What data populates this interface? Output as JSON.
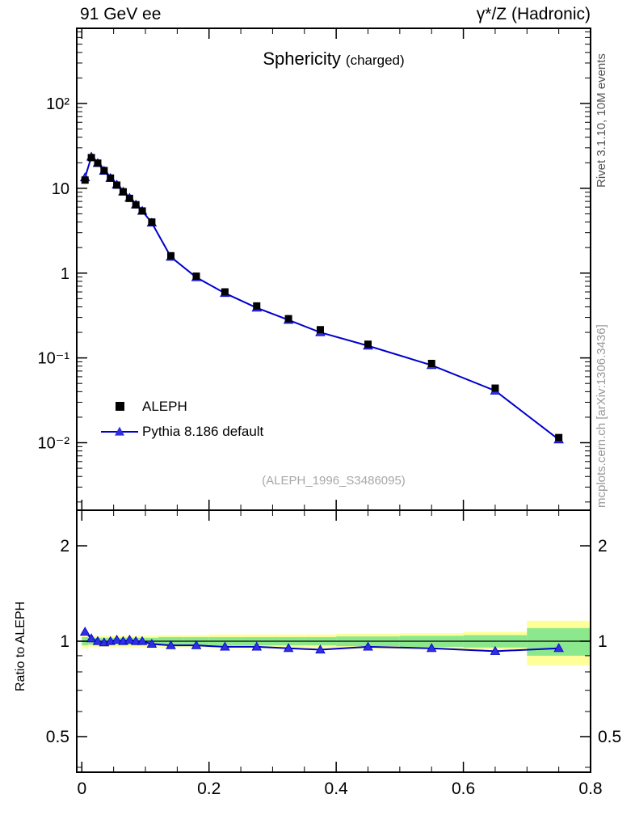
{
  "header": {
    "left": "91 GeV ee",
    "right": "γ*/Z (Hadronic)"
  },
  "title": {
    "main": "Sphericity",
    "sub": "(charged)"
  },
  "legend": [
    {
      "label": "ALEPH",
      "marker": "black-square"
    },
    {
      "label": "Pythia 8.186 default",
      "marker": "blue-triangle-line"
    }
  ],
  "watermark": "(ALEPH_1996_S3486095)",
  "side_notes": {
    "top_right": "Rivet 3.1.10,  10M events",
    "bottom_right": "mcplots.cern.ch [arXiv:1306.3436]"
  },
  "ratio_axis_label": "Ratio to ALEPH",
  "colors": {
    "mc_blue": "#0000cc",
    "mc_marker": "#3030e0",
    "data_black": "#000000",
    "band_yellow": "#ffff99",
    "band_green": "#8ce88c",
    "watermark_gray": "#a8a8a8"
  },
  "chart_data": {
    "type": "line",
    "title": "Sphericity (charged)",
    "legend_position": "left-middle",
    "grid": false,
    "x": [
      0.005,
      0.015,
      0.025,
      0.035,
      0.045,
      0.055,
      0.065,
      0.075,
      0.085,
      0.095,
      0.11,
      0.14,
      0.18,
      0.225,
      0.275,
      0.325,
      0.375,
      0.45,
      0.55,
      0.65,
      0.75
    ],
    "bin_edges": [
      0,
      0.01,
      0.02,
      0.03,
      0.04,
      0.05,
      0.06,
      0.07,
      0.08,
      0.09,
      0.1,
      0.12,
      0.16,
      0.2,
      0.25,
      0.3,
      0.35,
      0.4,
      0.5,
      0.6,
      0.7,
      0.8
    ],
    "series": [
      {
        "name": "ALEPH",
        "role": "data",
        "marker": "square",
        "color": "#000000",
        "values": [
          12.5,
          23.0,
          19.8,
          16.2,
          13.2,
          10.9,
          9.1,
          7.6,
          6.4,
          5.4,
          4.0,
          1.6,
          0.92,
          0.6,
          0.41,
          0.29,
          0.215,
          0.145,
          0.086,
          0.044,
          0.0115
        ]
      },
      {
        "name": "Pythia 8.186 default",
        "role": "mc",
        "marker": "triangle",
        "color": "#0000cc",
        "values": [
          13.4,
          23.5,
          19.8,
          16.0,
          13.2,
          11.0,
          9.1,
          7.7,
          6.4,
          5.4,
          3.92,
          1.55,
          0.89,
          0.58,
          0.39,
          0.28,
          0.2,
          0.139,
          0.082,
          0.041,
          0.0109
        ]
      }
    ],
    "ratio": {
      "name": "Ratio to ALEPH",
      "values": [
        1.07,
        1.02,
        1.0,
        0.99,
        1.0,
        1.01,
        1.0,
        1.01,
        1.0,
        1.0,
        0.98,
        0.97,
        0.97,
        0.96,
        0.96,
        0.95,
        0.94,
        0.96,
        0.95,
        0.93,
        0.95
      ],
      "band_yellow_halfwidth": [
        0.05,
        0.04,
        0.04,
        0.04,
        0.04,
        0.04,
        0.04,
        0.04,
        0.04,
        0.04,
        0.04,
        0.045,
        0.045,
        0.05,
        0.05,
        0.05,
        0.05,
        0.055,
        0.06,
        0.07,
        0.16
      ],
      "band_green_halfwidth": [
        0.03,
        0.025,
        0.025,
        0.025,
        0.025,
        0.025,
        0.025,
        0.025,
        0.025,
        0.025,
        0.025,
        0.03,
        0.03,
        0.03,
        0.03,
        0.03,
        0.03,
        0.035,
        0.04,
        0.045,
        0.1
      ],
      "reference_line": 1
    },
    "x_axis": {
      "min": -0.008,
      "max": 0.8,
      "scale": "linear",
      "minor_step": 0.05,
      "majors": [
        {
          "v": 0,
          "label": "0"
        },
        {
          "v": 0.2,
          "label": "0.2"
        },
        {
          "v": 0.4,
          "label": "0.4"
        },
        {
          "v": 0.6,
          "label": "0.6"
        },
        {
          "v": 0.8,
          "label": "0.8"
        }
      ]
    },
    "y_main": {
      "scale": "log",
      "min": 0.0016,
      "max": 770,
      "majors": [
        {
          "v": 100,
          "label": "10²"
        },
        {
          "v": 10,
          "label": "10"
        },
        {
          "v": 1,
          "label": "1"
        },
        {
          "v": 0.1,
          "label": "10⁻¹"
        },
        {
          "v": 0.01,
          "label": "10⁻²"
        }
      ]
    },
    "y_ratio": {
      "scale": "log",
      "min": 0.386,
      "max": 2.59,
      "majors": [
        {
          "v": 2,
          "label": "2"
        },
        {
          "v": 1,
          "label": "1"
        },
        {
          "v": 0.5,
          "label": "0.5"
        }
      ],
      "minors": [
        0.4,
        0.6,
        0.7,
        0.8,
        0.9
      ]
    }
  }
}
